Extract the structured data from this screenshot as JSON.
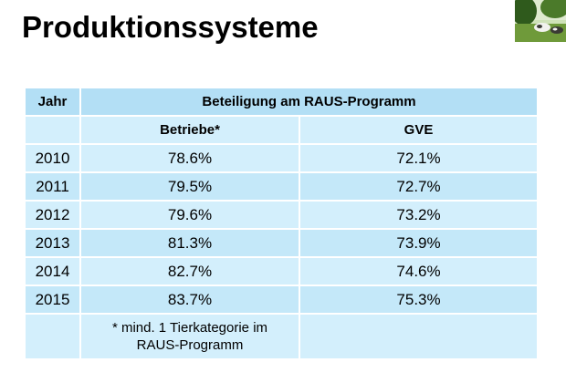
{
  "title": "Produktionssysteme",
  "photo": {
    "icon": "cows-on-meadow-photo",
    "colors": {
      "sky": "#cfe2b8",
      "tree": "#2f5a1c",
      "grass": "#6f9a3a",
      "cow_white": "#f2f2ee",
      "cow_dark": "#3a3a34"
    }
  },
  "table": {
    "header": {
      "year": "Jahr",
      "group": "Beteiligung am RAUS-Programm"
    },
    "subheader": {
      "betriebe": "Betriebe*",
      "gve": "GVE"
    },
    "rows": [
      {
        "year": "2010",
        "betriebe": "78.6%",
        "gve": "72.1%"
      },
      {
        "year": "2011",
        "betriebe": "79.5%",
        "gve": "72.7%"
      },
      {
        "year": "2012",
        "betriebe": "79.6%",
        "gve": "73.2%"
      },
      {
        "year": "2013",
        "betriebe": "81.3%",
        "gve": "73.9%"
      },
      {
        "year": "2014",
        "betriebe": "82.7%",
        "gve": "74.6%"
      },
      {
        "year": "2015",
        "betriebe": "83.7%",
        "gve": "75.3%"
      }
    ],
    "footnote": "* mind. 1 Tierkategorie im\nRAUS-Programm",
    "colors": {
      "header_bg": "#b3dff5",
      "row_light": "#d3effc",
      "row_alt": "#c4e8f9",
      "grid_line": "#ffffff"
    }
  }
}
